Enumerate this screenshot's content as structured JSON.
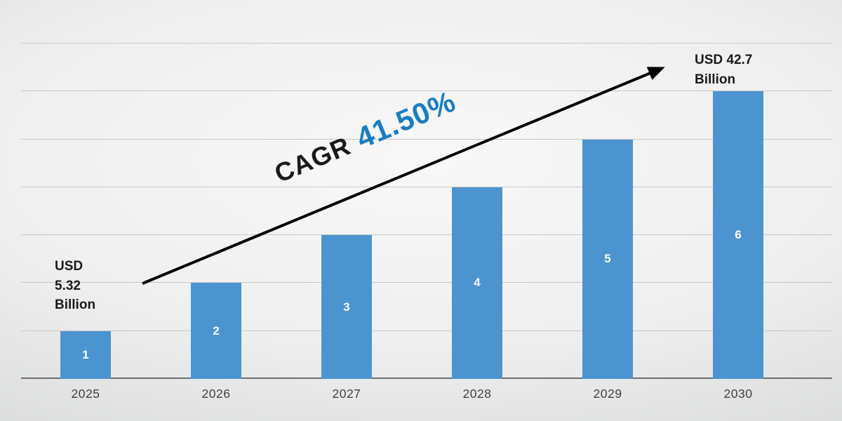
{
  "chart_data": {
    "type": "bar",
    "title": "",
    "xlabel": "",
    "ylabel": "",
    "categories": [
      "2025",
      "2026",
      "2027",
      "2028",
      "2029",
      "2030"
    ],
    "values": [
      1,
      2,
      3,
      4,
      5,
      6
    ],
    "bar_labels": [
      "1",
      "2",
      "3",
      "4",
      "5",
      "6"
    ],
    "ylim": [
      0,
      7
    ],
    "grid": true,
    "legend": false,
    "annotations": {
      "start_value": "USD\n5.32\nBillion",
      "end_value": "USD 42.7\nBillion",
      "cagr_label": "CAGR",
      "cagr_value": "41.50%"
    },
    "colors": {
      "bar": "#4b94d0",
      "bar_label": "#ffffff",
      "cagr_label": "#1a1a1a",
      "cagr_value": "#1a7dc2",
      "arrow": "#000000",
      "tick_label": "#3f3f3f",
      "annotation_text": "#1a1a1a",
      "gridline": "#c7c7c7",
      "baseline": "#6e6e6e"
    }
  }
}
